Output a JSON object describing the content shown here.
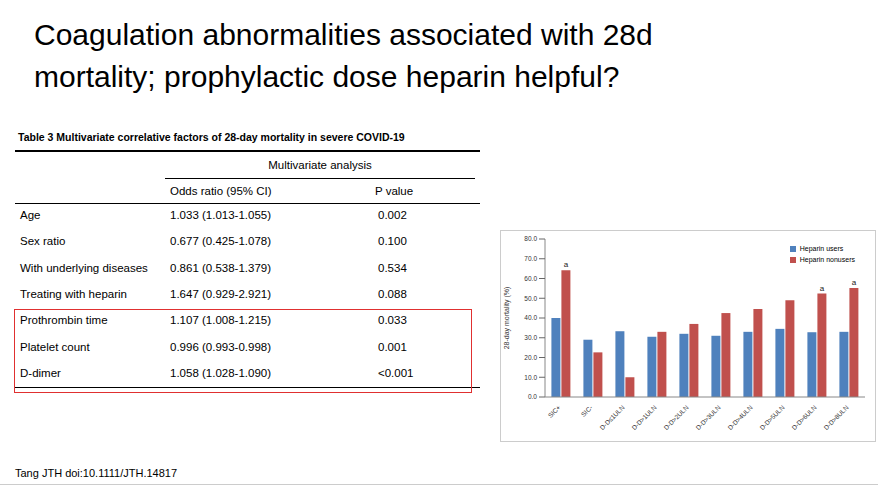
{
  "slide_title": [
    "Coagulation abnormalities associated with 28d",
    "mortality; prophylactic dose heparin helpful?"
  ],
  "table": {
    "title": "Table 3 Multivariate correlative factors of 28-day mortality in severe COVID-19",
    "group_header": "Multivariate analysis",
    "columns": [
      "Odds ratio (95% CI)",
      "P value"
    ],
    "rows": [
      [
        "Age",
        "1.033 (1.013-1.055)",
        "0.002"
      ],
      [
        "Sex ratio",
        "0.677 (0.425-1.078)",
        "0.100"
      ],
      [
        "With underlying diseases",
        "0.861 (0.538-1.379)",
        "0.534"
      ],
      [
        "Treating with heparin",
        "1.647 (0.929-2.921)",
        "0.088"
      ]
    ],
    "highlighted_rows": [
      [
        "Prothrombin time",
        "1.107 (1.008-1.215)",
        "0.033"
      ],
      [
        "Platelet count",
        "0.996 (0.993-0.998)",
        "0.001"
      ],
      [
        "D-dimer",
        "1.058 (1.028-1.090)",
        "<0.001"
      ]
    ]
  },
  "chart_data": {
    "type": "bar",
    "y_label": "28-day mortality (%)",
    "categories": [
      "SIC+",
      "SIC-",
      "D-D≤1ULN",
      "D-D>1ULN",
      "D-D>2ULN",
      "D-D>3ULN",
      "D-D>4ULN",
      "D-D>5ULN",
      "D-D>6ULN",
      "D-D>8ULN"
    ],
    "series": [
      {
        "name": "Heparin users",
        "color": "#4f81bd",
        "values": [
          40.0,
          29.0,
          33.3,
          30.5,
          32.0,
          31.0,
          33.0,
          34.5,
          32.8,
          33.0
        ]
      },
      {
        "name": "Heparin nonusers",
        "color": "#c0504d",
        "values": [
          64.2,
          22.6,
          10.0,
          33.0,
          37.0,
          42.5,
          44.5,
          49.0,
          52.4,
          55.2
        ]
      }
    ],
    "annotations": [
      {
        "category": "SIC+",
        "series": "Heparin nonusers",
        "text": "a"
      },
      {
        "category": "D-D>6ULN",
        "series": "Heparin nonusers",
        "text": "a"
      },
      {
        "category": "D-D>8ULN",
        "series": "Heparin nonusers",
        "text": "a"
      }
    ],
    "ylim": [
      0,
      80
    ],
    "yticks": [
      {
        "value": 0,
        "label": "0.0"
      },
      {
        "value": 10,
        "label": "10.0"
      },
      {
        "value": 20,
        "label": "20.0"
      },
      {
        "value": 30,
        "label": "30.0"
      },
      {
        "value": 40,
        "label": "40.0"
      },
      {
        "value": 50,
        "label": "50.0"
      },
      {
        "value": 60,
        "label": "60.0"
      },
      {
        "value": 70,
        "label": "70.0"
      },
      {
        "value": 80,
        "label": "80.0"
      }
    ],
    "grid": false,
    "legend": "top-right"
  },
  "citation": "Tang JTH doi:10.1111/JTH.14817"
}
